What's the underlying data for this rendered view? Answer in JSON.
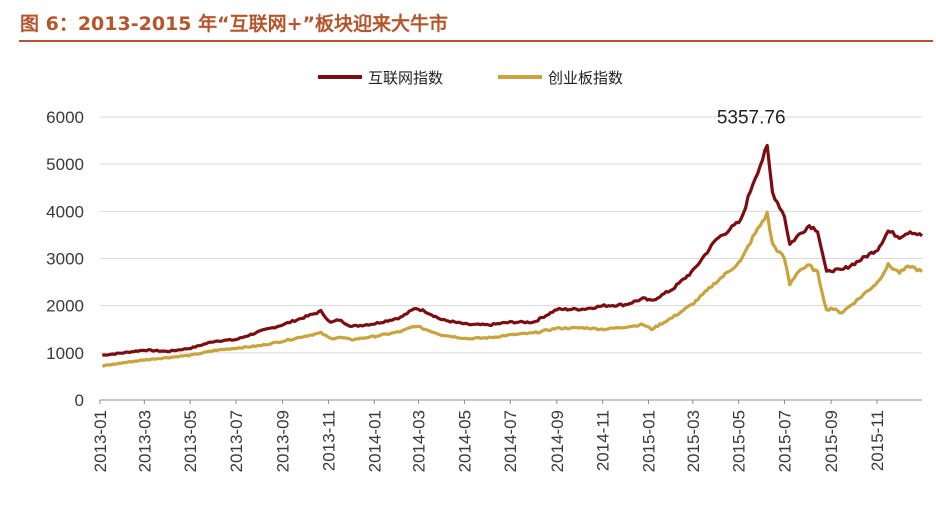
{
  "figure": {
    "title": "图 6：2013-2015 年“互联网+”板块迎来大牛市"
  },
  "colors": {
    "title": "#b5552b",
    "series_internet": "#7a0e12",
    "series_chinext": "#c9a33c",
    "grid": "#d9d9d9"
  },
  "chart_data": {
    "type": "line",
    "title": "",
    "xlabel": "",
    "ylabel": "",
    "grid": true,
    "legend_position": "top-center",
    "ylim": [
      0,
      6000
    ],
    "yticks": [
      0,
      1000,
      2000,
      3000,
      4000,
      5000,
      6000
    ],
    "x_tick_labels": [
      "2013-01",
      "2013-03",
      "2013-05",
      "2013-07",
      "2013-09",
      "2013-11",
      "2014-01",
      "2014-03",
      "2014-05",
      "2014-07",
      "2014-09",
      "2014-11",
      "2015-01",
      "2015-03",
      "2015-05",
      "2015-07",
      "2015-09",
      "2015-11"
    ],
    "annotation": {
      "text": "5357.76",
      "x": "2015-06-08",
      "y": 5357.76
    },
    "series": [
      {
        "name": "互联网指数",
        "x": [
          "2013-01-04",
          "2013-02-01",
          "2013-03-01",
          "2013-04-01",
          "2013-05-02",
          "2013-06-03",
          "2013-07-01",
          "2013-08-01",
          "2013-09-02",
          "2013-10-08",
          "2013-10-22",
          "2013-11-04",
          "2013-11-15",
          "2013-12-02",
          "2014-01-02",
          "2014-02-05",
          "2014-02-25",
          "2014-03-10",
          "2014-04-01",
          "2014-05-05",
          "2014-06-03",
          "2014-07-01",
          "2014-08-01",
          "2014-09-01",
          "2014-10-08",
          "2014-11-03",
          "2014-12-01",
          "2014-12-25",
          "2015-01-05",
          "2015-02-02",
          "2015-03-02",
          "2015-04-01",
          "2015-05-04",
          "2015-05-20",
          "2015-06-08",
          "2015-06-15",
          "2015-07-01",
          "2015-07-08",
          "2015-07-20",
          "2015-08-03",
          "2015-08-14",
          "2015-08-26",
          "2015-09-01",
          "2015-09-15",
          "2015-10-08",
          "2015-11-02",
          "2015-11-16",
          "2015-12-01",
          "2015-12-15",
          "2015-12-31"
        ],
        "y": [
          950,
          1000,
          1060,
          1030,
          1100,
          1250,
          1280,
          1450,
          1600,
          1800,
          1880,
          1640,
          1700,
          1560,
          1620,
          1750,
          1950,
          1880,
          1700,
          1600,
          1590,
          1650,
          1650,
          1920,
          1930,
          2000,
          2020,
          2150,
          2100,
          2350,
          2750,
          3400,
          3800,
          4600,
          5357.76,
          4400,
          3900,
          3300,
          3500,
          3700,
          3600,
          2700,
          2750,
          2750,
          2950,
          3200,
          3580,
          3460,
          3580,
          3480
        ]
      },
      {
        "name": "创业板指数",
        "x": [
          "2013-01-04",
          "2013-02-01",
          "2013-03-01",
          "2013-04-01",
          "2013-05-02",
          "2013-06-03",
          "2013-07-01",
          "2013-08-01",
          "2013-09-02",
          "2013-10-08",
          "2013-10-22",
          "2013-11-04",
          "2013-11-15",
          "2013-12-02",
          "2014-01-02",
          "2014-02-05",
          "2014-02-25",
          "2014-03-10",
          "2014-04-01",
          "2014-05-05",
          "2014-06-03",
          "2014-07-01",
          "2014-08-01",
          "2014-09-01",
          "2014-10-08",
          "2014-11-03",
          "2014-12-01",
          "2014-12-25",
          "2015-01-05",
          "2015-02-02",
          "2015-03-02",
          "2015-04-01",
          "2015-05-04",
          "2015-05-20",
          "2015-06-08",
          "2015-06-15",
          "2015-07-01",
          "2015-07-08",
          "2015-07-20",
          "2015-08-03",
          "2015-08-14",
          "2015-08-26",
          "2015-09-01",
          "2015-09-15",
          "2015-10-08",
          "2015-11-02",
          "2015-11-16",
          "2015-12-01",
          "2015-12-15",
          "2015-12-31"
        ],
        "y": [
          720,
          790,
          850,
          900,
          950,
          1050,
          1100,
          1150,
          1250,
          1380,
          1420,
          1300,
          1330,
          1280,
          1350,
          1450,
          1570,
          1500,
          1380,
          1300,
          1320,
          1380,
          1420,
          1520,
          1530,
          1500,
          1550,
          1600,
          1500,
          1750,
          2050,
          2500,
          2950,
          3450,
          3950,
          3300,
          3000,
          2450,
          2750,
          2850,
          2700,
          1900,
          1950,
          1850,
          2150,
          2500,
          2860,
          2700,
          2840,
          2720
        ]
      }
    ]
  }
}
